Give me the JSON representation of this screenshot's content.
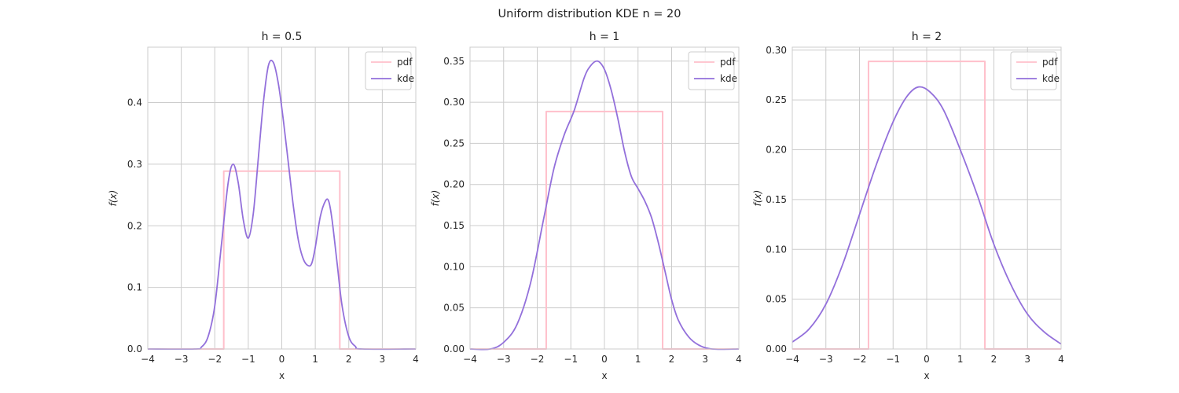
{
  "figure": {
    "title": "Uniform distribution KDE n = 20"
  },
  "colors": {
    "pdf": "#ffc0cb",
    "kde": "#9370db",
    "grid": "#cccccc",
    "frame": "#cccccc"
  },
  "chart_data": [
    {
      "type": "line",
      "title": "h = 0.5",
      "xlabel": "x",
      "ylabel": "f(x)",
      "xlim": [
        -4,
        4
      ],
      "ylim": [
        0,
        0.49
      ],
      "xticks": [
        -4,
        -3,
        -2,
        -1,
        0,
        1,
        2,
        3,
        4
      ],
      "xtick_labels": [
        "−4",
        "−3",
        "−2",
        "−1",
        "0",
        "1",
        "2",
        "3",
        "4"
      ],
      "yticks": [
        0,
        0.1,
        0.2,
        0.3,
        0.4
      ],
      "ytick_labels": [
        "0.0",
        "0.1",
        "0.2",
        "0.3",
        "0.4"
      ],
      "grid": true,
      "legend": {
        "position": "top-right",
        "entries": [
          "pdf",
          "kde"
        ]
      },
      "series": [
        {
          "name": "pdf",
          "x": [
            -4,
            -1.732,
            -1.732,
            1.732,
            1.732,
            4
          ],
          "y": [
            0,
            0,
            0.2887,
            0.2887,
            0,
            0
          ]
        },
        {
          "name": "kde",
          "x": [
            -4,
            -2.6,
            -2.4,
            -2.2,
            -2.0,
            -1.8,
            -1.6,
            -1.45,
            -1.3,
            -1.15,
            -1.0,
            -0.85,
            -0.7,
            -0.55,
            -0.4,
            -0.25,
            -0.1,
            0.05,
            0.2,
            0.35,
            0.5,
            0.65,
            0.8,
            0.9,
            1.0,
            1.15,
            1.3,
            1.4,
            1.5,
            1.65,
            1.8,
            2.0,
            2.2,
            2.4,
            4
          ],
          "y": [
            0,
            0,
            0.003,
            0.02,
            0.07,
            0.17,
            0.27,
            0.3,
            0.27,
            0.21,
            0.18,
            0.22,
            0.31,
            0.4,
            0.46,
            0.465,
            0.43,
            0.37,
            0.3,
            0.23,
            0.175,
            0.145,
            0.135,
            0.14,
            0.165,
            0.215,
            0.24,
            0.24,
            0.21,
            0.14,
            0.07,
            0.02,
            0.004,
            0,
            0
          ]
        }
      ]
    },
    {
      "type": "line",
      "title": "h = 1",
      "xlabel": "x",
      "ylabel": "f(x)",
      "xlim": [
        -4,
        4
      ],
      "ylim": [
        0,
        0.367
      ],
      "xticks": [
        -4,
        -3,
        -2,
        -1,
        0,
        1,
        2,
        3,
        4
      ],
      "xtick_labels": [
        "−4",
        "−3",
        "−2",
        "−1",
        "0",
        "1",
        "2",
        "3",
        "4"
      ],
      "yticks": [
        0,
        0.05,
        0.1,
        0.15,
        0.2,
        0.25,
        0.3,
        0.35
      ],
      "ytick_labels": [
        "0.00",
        "0.05",
        "0.10",
        "0.15",
        "0.20",
        "0.25",
        "0.30",
        "0.35"
      ],
      "grid": true,
      "legend": {
        "position": "top-right",
        "entries": [
          "pdf",
          "kde"
        ]
      },
      "series": [
        {
          "name": "pdf",
          "x": [
            -4,
            -1.732,
            -1.732,
            1.732,
            1.732,
            4
          ],
          "y": [
            0,
            0,
            0.2887,
            0.2887,
            0,
            0
          ]
        },
        {
          "name": "kde",
          "x": [
            -4,
            -3.4,
            -3.0,
            -2.6,
            -2.2,
            -1.8,
            -1.5,
            -1.2,
            -0.9,
            -0.6,
            -0.4,
            -0.2,
            0.0,
            0.2,
            0.4,
            0.6,
            0.8,
            1.0,
            1.2,
            1.4,
            1.6,
            1.8,
            2.0,
            2.2,
            2.5,
            2.8,
            3.2,
            4
          ],
          "y": [
            0,
            0,
            0.008,
            0.03,
            0.08,
            0.16,
            0.22,
            0.26,
            0.29,
            0.33,
            0.345,
            0.35,
            0.34,
            0.315,
            0.28,
            0.24,
            0.21,
            0.195,
            0.18,
            0.16,
            0.13,
            0.095,
            0.06,
            0.035,
            0.015,
            0.005,
            0,
            0
          ]
        }
      ]
    },
    {
      "type": "line",
      "title": "h = 2",
      "xlabel": "x",
      "ylabel": "f(x)",
      "xlim": [
        -4,
        4
      ],
      "ylim": [
        0,
        0.303
      ],
      "xticks": [
        -4,
        -3,
        -2,
        -1,
        0,
        1,
        2,
        3,
        4
      ],
      "xtick_labels": [
        "−4",
        "−3",
        "−2",
        "−1",
        "0",
        "1",
        "2",
        "3",
        "4"
      ],
      "yticks": [
        0,
        0.05,
        0.1,
        0.15,
        0.2,
        0.25,
        0.3
      ],
      "ytick_labels": [
        "0.00",
        "0.05",
        "0.10",
        "0.15",
        "0.20",
        "0.25",
        "0.30"
      ],
      "grid": true,
      "legend": {
        "position": "top-right",
        "entries": [
          "pdf",
          "kde"
        ]
      },
      "series": [
        {
          "name": "pdf",
          "x": [
            -4,
            -1.732,
            -1.732,
            1.732,
            1.732,
            4
          ],
          "y": [
            0,
            0,
            0.2887,
            0.2887,
            0,
            0
          ]
        },
        {
          "name": "kde",
          "x": [
            -4,
            -3.5,
            -3.0,
            -2.5,
            -2.0,
            -1.5,
            -1.0,
            -0.6,
            -0.25,
            0.1,
            0.5,
            1.0,
            1.5,
            2.0,
            2.5,
            3.0,
            3.5,
            4
          ],
          "y": [
            0.007,
            0.02,
            0.045,
            0.085,
            0.135,
            0.185,
            0.228,
            0.253,
            0.263,
            0.258,
            0.24,
            0.2,
            0.155,
            0.105,
            0.065,
            0.035,
            0.017,
            0.005
          ]
        }
      ]
    }
  ]
}
